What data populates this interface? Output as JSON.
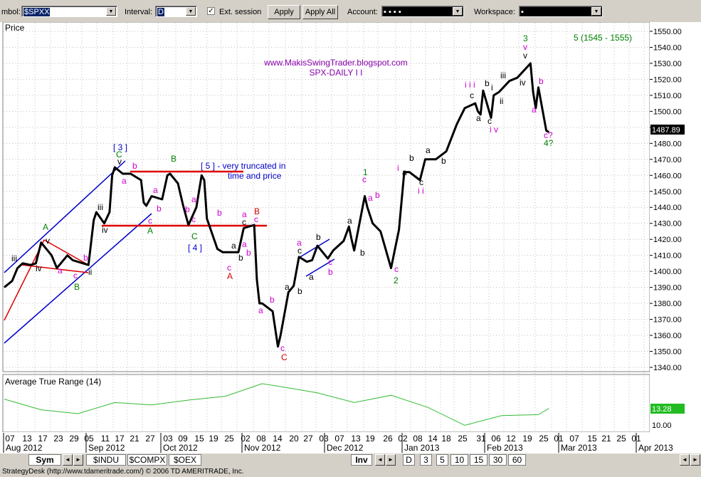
{
  "toolbar": {
    "symbol_label": "mbol:",
    "symbol_value": "$SPXX",
    "interval_label": "Interval:",
    "interval_value": "D",
    "ext_session_label": "Ext. session",
    "ext_session_checked": "✓",
    "apply_label": "Apply",
    "apply_all_label": "Apply All",
    "account_label": "Account:",
    "account_value": "▪ ▪ ▪ ▪",
    "workspace_label": "Workspace:",
    "workspace_value": "▪"
  },
  "price_panel": {
    "label": "Price",
    "current_price": "1487.89",
    "watermark_line1": "www.MakisSwingTrader.blogspot.com",
    "watermark_line2": "SPX-DAILY I I",
    "target_note": "5 (1545 - 1555)",
    "note_line1": "[ 5 ] - very truncated in",
    "note_line2": "time and price"
  },
  "atr_panel": {
    "label": "Average True Range (14)",
    "current_value": "13.28",
    "tick_label": "10.00"
  },
  "colors": {
    "price_line": "#000000",
    "channel": "#0000cc",
    "support_resistance": "#dd0000",
    "wave_green": "#008000",
    "wave_magenta": "#cc00cc",
    "wave_red": "#cc0000",
    "atr_line": "#33bb33",
    "watermark": "#8800aa",
    "price_tag_bg": "#000000",
    "atr_tag_bg": "#22bb22"
  },
  "x_axis": {
    "days": [
      "07",
      "13",
      "17",
      "23",
      "29",
      "05",
      "11",
      "17",
      "21",
      "27",
      "03",
      "09",
      "15",
      "19",
      "25",
      "02",
      "08",
      "14",
      "20",
      "27",
      "03",
      "07",
      "13",
      "19",
      "26",
      "02",
      "08",
      "14",
      "18",
      "25",
      "31",
      "06",
      "12",
      "19",
      "25",
      "01",
      "07",
      "15",
      "21",
      "25",
      "01"
    ],
    "months": [
      "Aug 2012",
      "Sep 2012",
      "Oct 2012",
      "Nov 2012",
      "Dec 2012",
      "Jan 2013",
      "Feb 2013",
      "Mar 2013",
      "Apr 2013"
    ]
  },
  "y_axis": {
    "ticks": [
      "1550.00",
      "1540.00",
      "1530.00",
      "1520.00",
      "1510.00",
      "1500.00",
      "1490.00",
      "1480.00",
      "1470.00",
      "1460.00",
      "1450.00",
      "1440.00",
      "1430.00",
      "1420.00",
      "1410.00",
      "1400.00",
      "1390.00",
      "1380.00",
      "1370.00",
      "1360.00",
      "1350.00",
      "1340.00"
    ]
  },
  "chart_data": {
    "type": "line",
    "title": "SPX-DAILY I I",
    "ylim": [
      1335,
      1555
    ],
    "series": [
      {
        "name": "$SPX",
        "x": [
          "2012-08-03",
          "2012-08-06",
          "2012-08-08",
          "2012-08-10",
          "2012-08-13",
          "2012-08-15",
          "2012-08-17",
          "2012-08-21",
          "2012-08-23",
          "2012-08-27",
          "2012-08-29",
          "2012-08-31",
          "2012-09-04",
          "2012-09-06",
          "2012-09-07",
          "2012-09-10",
          "2012-09-12",
          "2012-09-13",
          "2012-09-14",
          "2012-09-17",
          "2012-09-20",
          "2012-09-24",
          "2012-09-25",
          "2012-09-26",
          "2012-09-28",
          "2012-10-02",
          "2012-10-04",
          "2012-10-05",
          "2012-10-08",
          "2012-10-10",
          "2012-10-12",
          "2012-10-15",
          "2012-10-17",
          "2012-10-18",
          "2012-10-19",
          "2012-10-23",
          "2012-10-25",
          "2012-10-31",
          "2012-11-02",
          "2012-11-06",
          "2012-11-07",
          "2012-11-08",
          "2012-11-09",
          "2012-11-13",
          "2012-11-15",
          "2012-11-16",
          "2012-11-19",
          "2012-11-21",
          "2012-11-23",
          "2012-11-26",
          "2012-11-28",
          "2012-11-30",
          "2012-12-04",
          "2012-12-06",
          "2012-12-10",
          "2012-12-12",
          "2012-12-13",
          "2012-12-14",
          "2012-12-18",
          "2012-12-19",
          "2012-12-21",
          "2012-12-24",
          "2012-12-28",
          "2012-12-31",
          "2013-01-02",
          "2013-01-04",
          "2013-01-08",
          "2013-01-10",
          "2013-01-14",
          "2013-01-18",
          "2013-01-22",
          "2013-01-25",
          "2013-01-29",
          "2013-01-30",
          "2013-01-31",
          "2013-02-01",
          "2013-02-04",
          "2013-02-05",
          "2013-02-07",
          "2013-02-11",
          "2013-02-14",
          "2013-02-19",
          "2013-02-20",
          "2013-02-21",
          "2013-02-22",
          "2013-02-25",
          "2013-02-26"
        ],
        "values": [
          1390,
          1394,
          1402,
          1405,
          1404,
          1405,
          1418,
          1410,
          1402,
          1410,
          1407,
          1406,
          1404,
          1432,
          1437,
          1430,
          1437,
          1460,
          1465,
          1461,
          1461,
          1457,
          1443,
          1441,
          1447,
          1445,
          1460,
          1461,
          1455,
          1441,
          1429,
          1440,
          1460,
          1457,
          1433,
          1414,
          1412,
          1412,
          1427,
          1429,
          1395,
          1380,
          1380,
          1375,
          1353,
          1360,
          1387,
          1391,
          1409,
          1406,
          1407,
          1416,
          1408,
          1413,
          1419,
          1428,
          1420,
          1413,
          1447,
          1440,
          1430,
          1425,
          1402,
          1426,
          1462,
          1462,
          1457,
          1470,
          1470,
          1475,
          1492,
          1502,
          1505,
          1500,
          1498,
          1513,
          1496,
          1510,
          1512,
          1519,
          1521,
          1530,
          1512,
          1502,
          1515,
          1488,
          1487
        ]
      },
      {
        "name": "Average True Range (14)",
        "x": [
          "2012-08-03",
          "2012-08-17",
          "2012-08-31",
          "2012-09-14",
          "2012-09-28",
          "2012-10-12",
          "2012-10-26",
          "2012-11-09",
          "2012-11-16",
          "2012-11-30",
          "2012-12-14",
          "2012-12-28",
          "2013-01-11",
          "2013-01-25",
          "2013-02-08",
          "2013-02-22",
          "2013-02-26"
        ],
        "values": [
          15.2,
          13.0,
          12.2,
          14.5,
          14.0,
          15.0,
          15.8,
          18.4,
          17.8,
          16.5,
          14.5,
          16.0,
          13.5,
          9.8,
          11.8,
          12.0,
          13.28
        ]
      }
    ],
    "annotations": [
      "A",
      "B",
      "C",
      "[ 3 ]",
      "[ 4 ]",
      "[ 5 ] - very truncated in",
      "time and price",
      "1",
      "2",
      "3",
      "4?",
      "c?",
      "i i i",
      "i v",
      "5 (1545 - 1555)"
    ]
  }
}
